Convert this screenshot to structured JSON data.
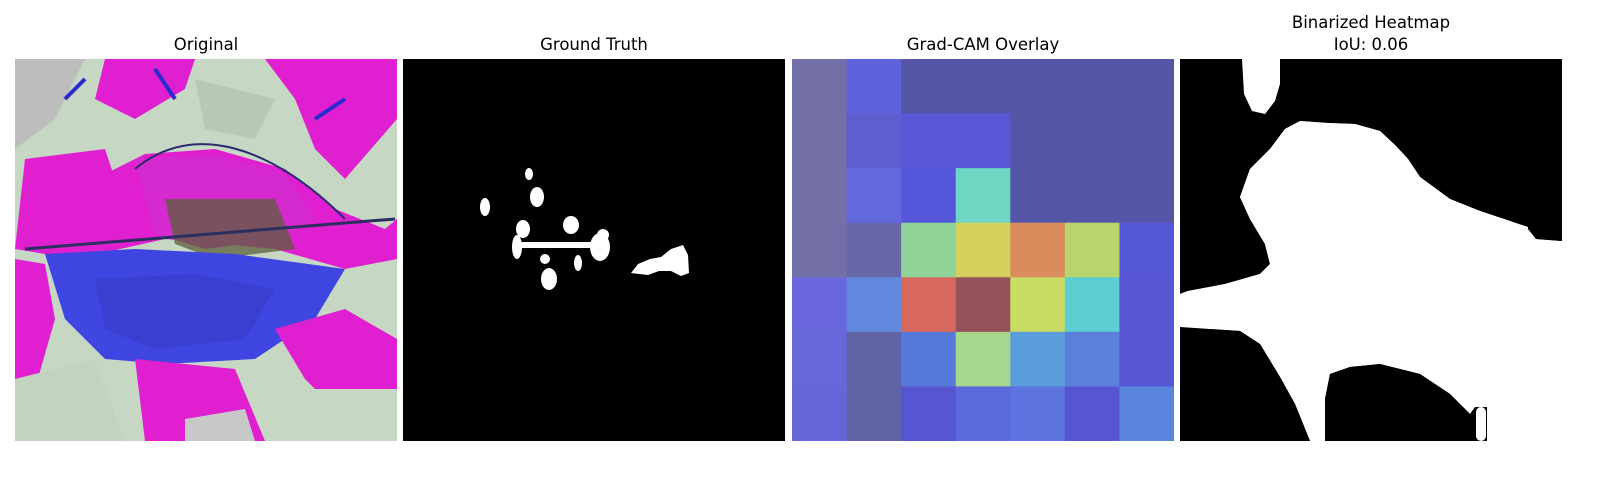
{
  "panels": {
    "original": {
      "title": "Original"
    },
    "ground_truth": {
      "title": "Ground Truth"
    },
    "gradcam": {
      "title": "Grad-CAM Overlay",
      "grid_rows": 7,
      "grid_cols": 7,
      "cell_colors": [
        [
          "#736fa7",
          "#5e63dc",
          "#5556a6",
          "#5556a6",
          "#5556a6",
          "#5556a6",
          "#5556a6"
        ],
        [
          "#736fa7",
          "#5e5ecf",
          "#5858d9",
          "#5858d9",
          "#5556a6",
          "#5556a6",
          "#5556a6"
        ],
        [
          "#736fa7",
          "#6468df",
          "#5656db",
          "#6fd6c3",
          "#5556a6",
          "#5556a6",
          "#5556a6"
        ],
        [
          "#736fa7",
          "#6868a9",
          "#8fd398",
          "#d3d15c",
          "#d98c5c",
          "#b8d46a",
          "#5656d9"
        ],
        [
          "#6a66dd",
          "#6289dd",
          "#d6685d",
          "#95525d",
          "#c8db63",
          "#5ccdd2",
          "#5656d3"
        ],
        [
          "#6767d9",
          "#6262a6",
          "#5779da",
          "#a7d78d",
          "#5a9ddb",
          "#5a80dc",
          "#5656d3"
        ],
        [
          "#6666d9",
          "#6262a6",
          "#5656d3",
          "#5a6adc",
          "#5c73e0",
          "#5656d3",
          "#5a85dc"
        ]
      ]
    },
    "binarized": {
      "title": "Binarized Heatmap",
      "subtitle": "IoU: 0.06"
    }
  }
}
